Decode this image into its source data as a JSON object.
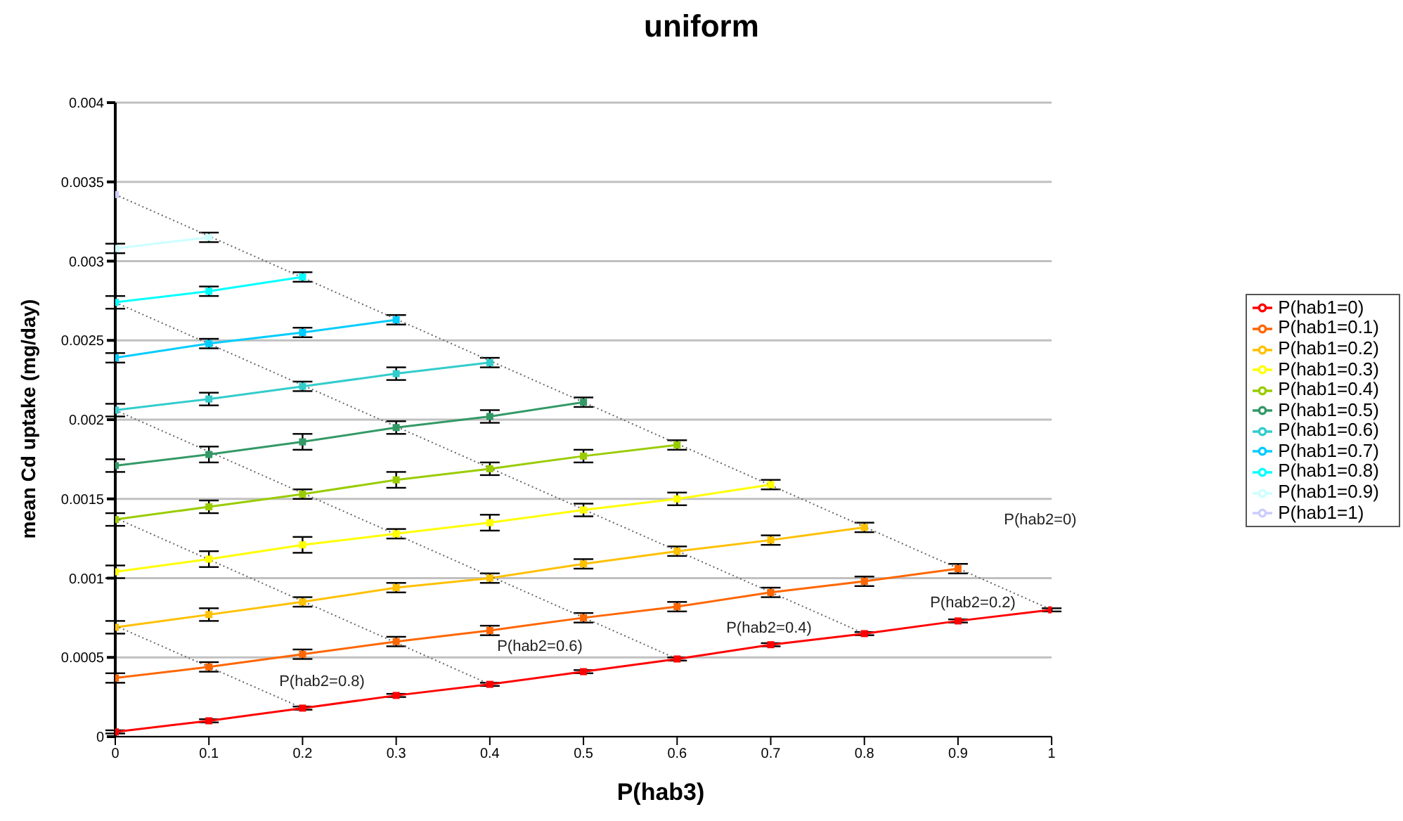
{
  "chart_data": {
    "type": "line",
    "title": "uniform",
    "xlabel": "P(hab3)",
    "ylabel": "mean Cd uptake (mg/day)",
    "xlim": [
      0,
      1
    ],
    "xticks": [
      0,
      0.1,
      0.2,
      0.3,
      0.4,
      0.5,
      0.6,
      0.7,
      0.8,
      0.9,
      1
    ],
    "ylim": [
      0,
      0.004
    ],
    "yticks": [
      0,
      0.0005,
      0.001,
      0.0015,
      0.002,
      0.0025,
      0.003,
      0.0035,
      0.004
    ],
    "grid": "y",
    "legend": "right",
    "marker": "square",
    "line_style": "solid",
    "series": [
      {
        "name": "P(hab1=0)",
        "color": "#ff0000",
        "x": [
          0,
          0.1,
          0.2,
          0.3,
          0.4,
          0.5,
          0.6,
          0.7,
          0.8,
          0.9,
          1
        ],
        "values": [
          3e-05,
          0.0001,
          0.00018,
          0.00026,
          0.00033,
          0.00041,
          0.00049,
          0.00058,
          0.00065,
          0.00073,
          0.0008
        ],
        "errors": [
          1e-05,
          1e-05,
          1e-05,
          1e-05,
          1e-05,
          1e-05,
          1e-05,
          1e-05,
          1e-05,
          1e-05,
          1e-05
        ]
      },
      {
        "name": "P(hab1=0.1)",
        "color": "#ff6600",
        "x": [
          0,
          0.1,
          0.2,
          0.3,
          0.4,
          0.5,
          0.6,
          0.7,
          0.8,
          0.9
        ],
        "values": [
          0.00037,
          0.00044,
          0.00052,
          0.0006,
          0.00067,
          0.00075,
          0.00082,
          0.00091,
          0.00098,
          0.00106
        ],
        "errors": [
          3e-05,
          3e-05,
          3e-05,
          3e-05,
          3e-05,
          3e-05,
          3e-05,
          3e-05,
          3e-05,
          3e-05
        ]
      },
      {
        "name": "P(hab1=0.2)",
        "color": "#ffc000",
        "x": [
          0,
          0.1,
          0.2,
          0.3,
          0.4,
          0.5,
          0.6,
          0.7,
          0.8
        ],
        "values": [
          0.00069,
          0.00077,
          0.00085,
          0.00094,
          0.001,
          0.00109,
          0.00117,
          0.00124,
          0.00132
        ],
        "errors": [
          4e-05,
          4e-05,
          3e-05,
          3e-05,
          3e-05,
          3e-05,
          3e-05,
          3e-05,
          3e-05
        ]
      },
      {
        "name": "P(hab1=0.3)",
        "color": "#ffff00",
        "x": [
          0,
          0.1,
          0.2,
          0.3,
          0.4,
          0.5,
          0.6,
          0.7
        ],
        "values": [
          0.00104,
          0.00112,
          0.00121,
          0.00128,
          0.00135,
          0.00143,
          0.0015,
          0.00159
        ],
        "errors": [
          4e-05,
          5e-05,
          5e-05,
          3e-05,
          5e-05,
          4e-05,
          4e-05,
          3e-05
        ]
      },
      {
        "name": "P(hab1=0.4)",
        "color": "#99cc00",
        "x": [
          0,
          0.1,
          0.2,
          0.3,
          0.4,
          0.5,
          0.6
        ],
        "values": [
          0.00137,
          0.00145,
          0.00153,
          0.00162,
          0.00169,
          0.00177,
          0.00184
        ],
        "errors": [
          4e-05,
          4e-05,
          3e-05,
          5e-05,
          4e-05,
          4e-05,
          3e-05
        ]
      },
      {
        "name": "P(hab1=0.5)",
        "color": "#339966",
        "x": [
          0,
          0.1,
          0.2,
          0.3,
          0.4,
          0.5
        ],
        "values": [
          0.00171,
          0.00178,
          0.00186,
          0.00195,
          0.00202,
          0.00211
        ],
        "errors": [
          4e-05,
          5e-05,
          5e-05,
          4e-05,
          4e-05,
          3e-05
        ]
      },
      {
        "name": "P(hab1=0.6)",
        "color": "#33cccc",
        "x": [
          0,
          0.1,
          0.2,
          0.3,
          0.4
        ],
        "values": [
          0.00206,
          0.00213,
          0.00221,
          0.00229,
          0.00236
        ],
        "errors": [
          4e-05,
          4e-05,
          3e-05,
          4e-05,
          3e-05
        ]
      },
      {
        "name": "P(hab1=0.7)",
        "color": "#00ccff",
        "x": [
          0,
          0.1,
          0.2,
          0.3
        ],
        "values": [
          0.00239,
          0.00248,
          0.00255,
          0.00263
        ],
        "errors": [
          3e-05,
          3e-05,
          3e-05,
          3e-05
        ]
      },
      {
        "name": "P(hab1=0.8)",
        "color": "#00ffff",
        "x": [
          0,
          0.1,
          0.2
        ],
        "values": [
          0.00274,
          0.00281,
          0.0029
        ],
        "errors": [
          4e-05,
          3e-05,
          3e-05
        ]
      },
      {
        "name": "P(hab1=0.9)",
        "color": "#ccffff",
        "x": [
          0,
          0.1
        ],
        "values": [
          0.00308,
          0.00315
        ],
        "errors": [
          3e-05,
          3e-05
        ]
      },
      {
        "name": "P(hab1=1)",
        "color": "#ccccff",
        "x": [
          0
        ],
        "values": [
          0.00342
        ]
      },
      {
        "color": "#666666",
        "line_style": "dotted",
        "marker": "none",
        "x": [
          0,
          1
        ],
        "values": [
          0.00342,
          0.0008
        ]
      },
      {
        "color": "#666666",
        "line_style": "dotted",
        "marker": "none",
        "x": [
          0,
          0.8
        ],
        "values": [
          0.00274,
          0.00065
        ]
      },
      {
        "color": "#666666",
        "line_style": "dotted",
        "marker": "none",
        "x": [
          0,
          0.6
        ],
        "values": [
          0.00206,
          0.00049
        ]
      },
      {
        "color": "#666666",
        "line_style": "dotted",
        "marker": "none",
        "x": [
          0,
          0.4
        ],
        "values": [
          0.00138,
          0.00033
        ]
      },
      {
        "color": "#666666",
        "line_style": "dotted",
        "marker": "none",
        "x": [
          0,
          0.2
        ],
        "values": [
          0.0007,
          0.00018
        ]
      }
    ],
    "annotations": [
      "P(hab2=0)",
      "P(hab2=0.2)",
      "P(hab2=0.4)",
      "P(hab2=0.6)",
      "P(hab2=0.8)"
    ]
  }
}
